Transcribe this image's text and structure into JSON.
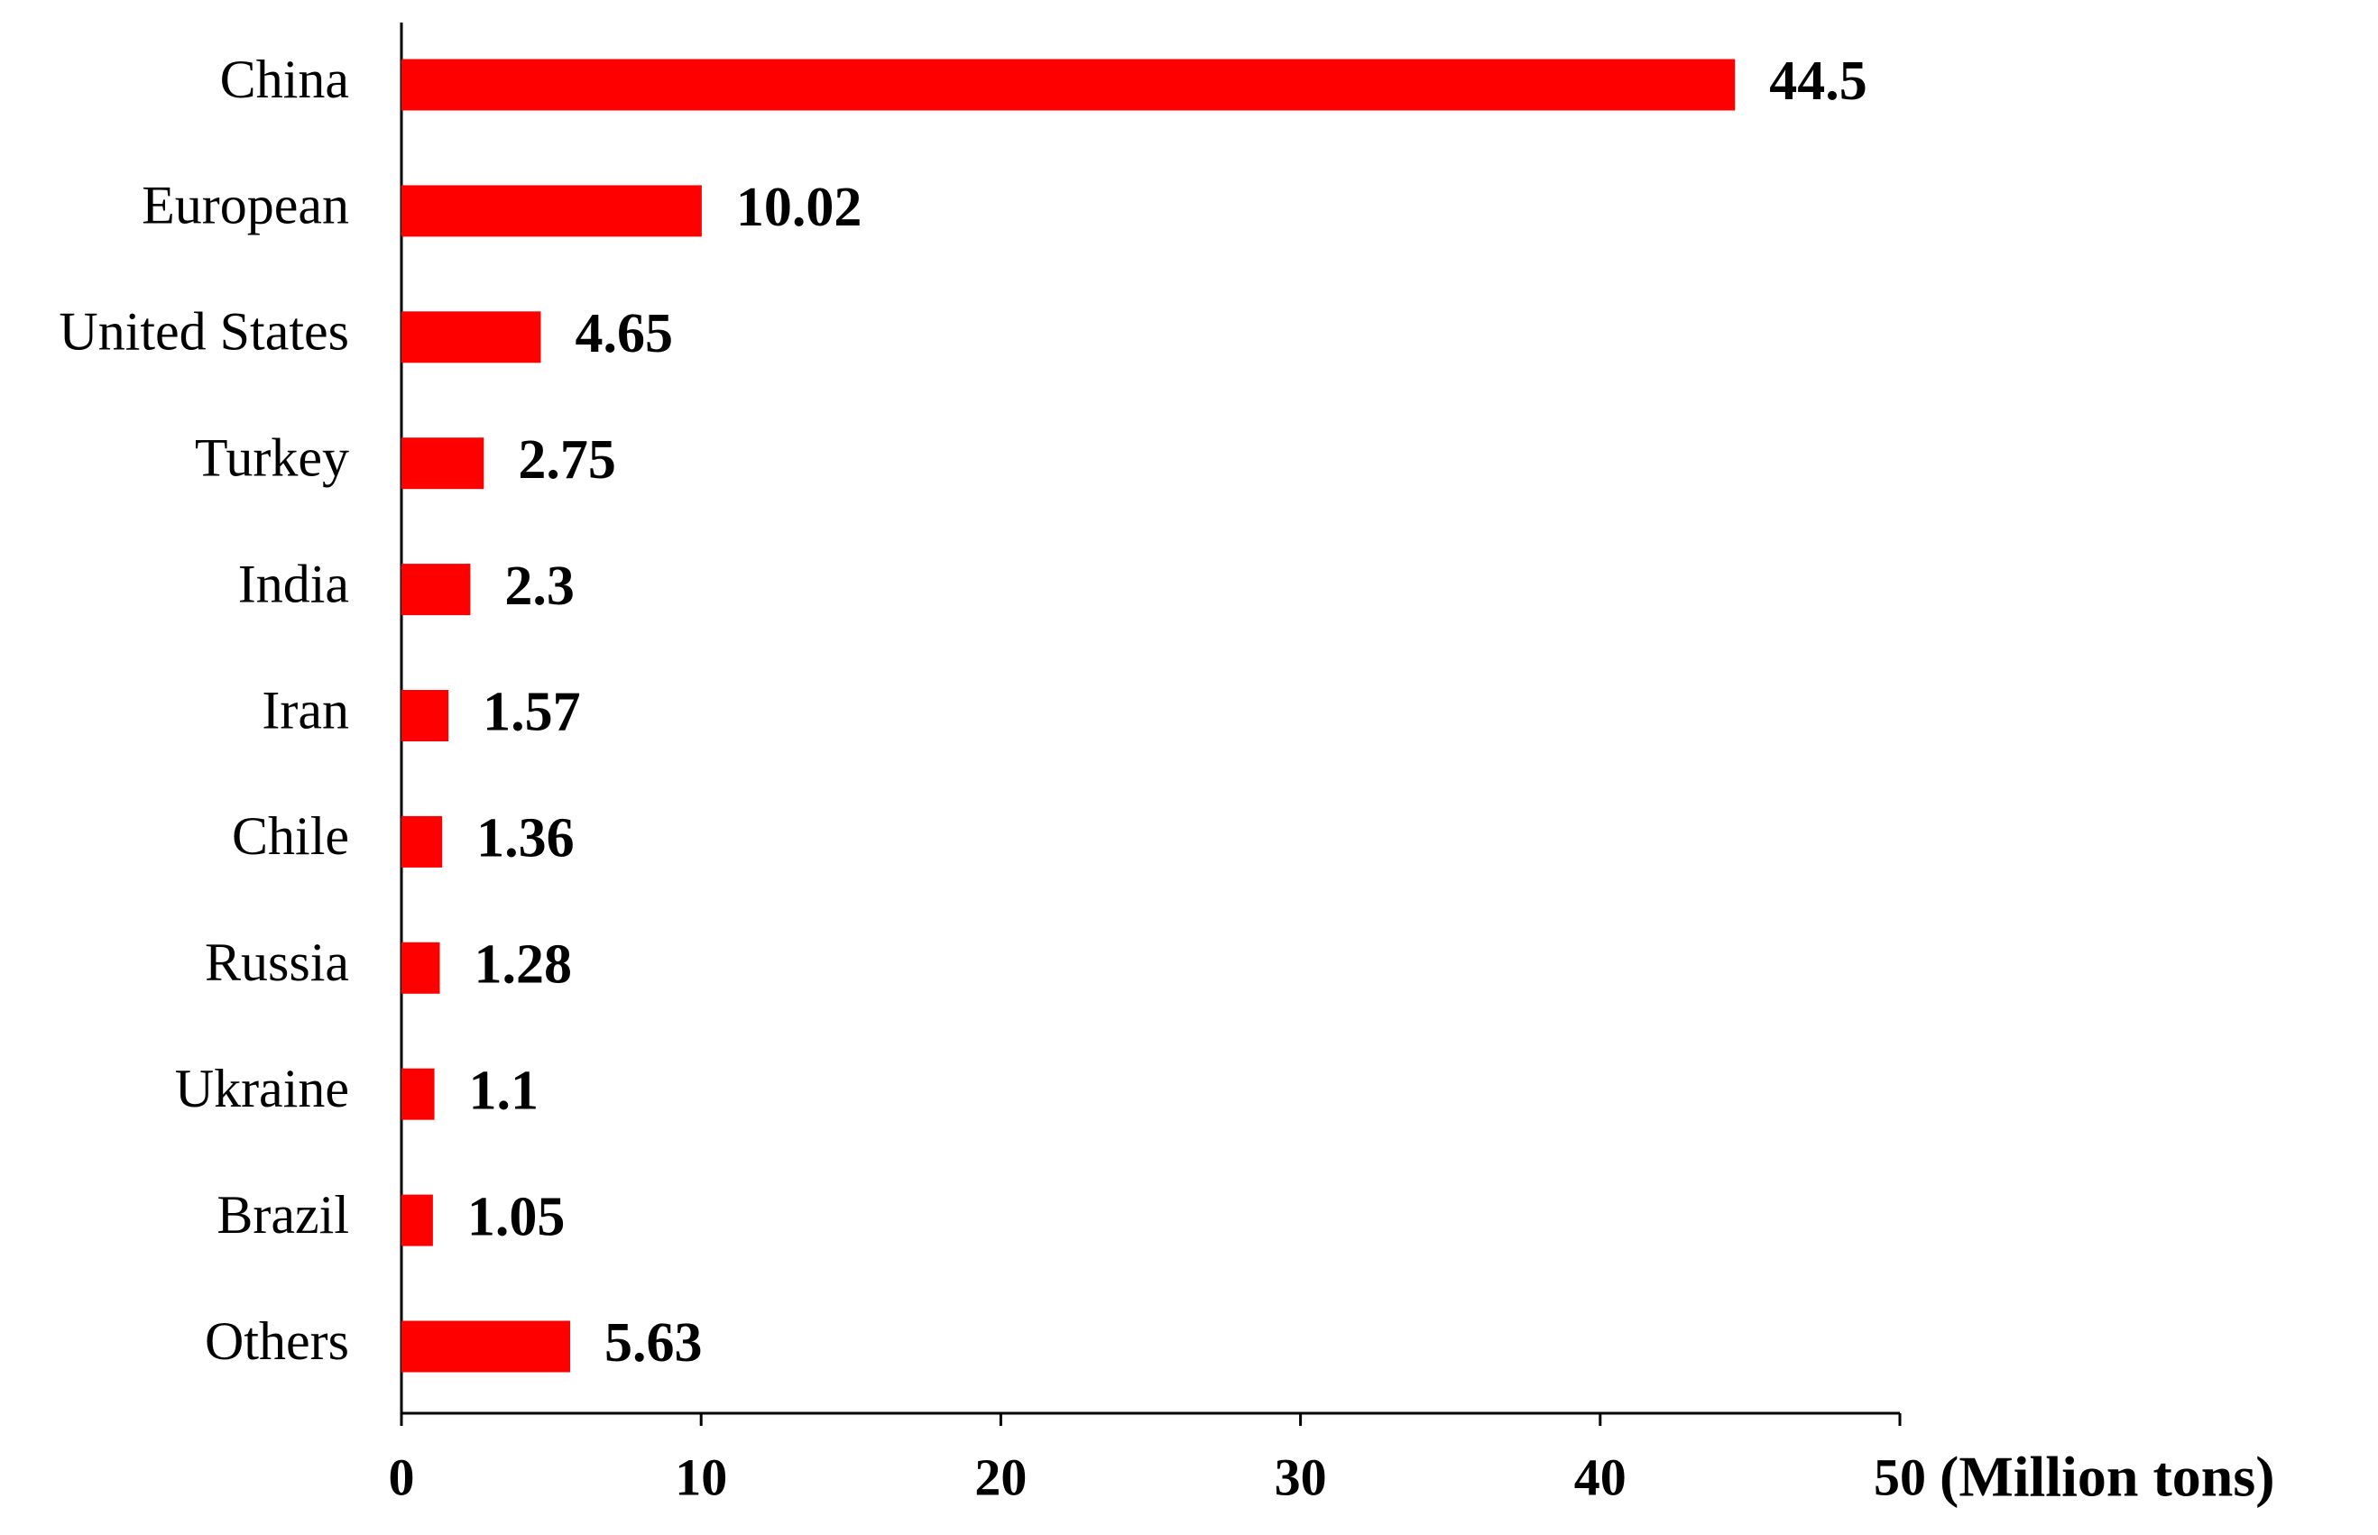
{
  "chart_data": {
    "type": "bar",
    "orientation": "horizontal",
    "categories": [
      "China",
      "European",
      "United States",
      "Turkey",
      "India",
      "Iran",
      "Chile",
      "Russia",
      "Ukraine",
      "Brazil",
      "Others"
    ],
    "values": [
      44.5,
      10.02,
      4.65,
      2.75,
      2.3,
      1.57,
      1.36,
      1.28,
      1.1,
      1.05,
      5.63
    ],
    "color": "#ff0000",
    "xlim": [
      0,
      50
    ],
    "xticks": [
      0,
      10,
      20,
      30,
      40,
      50
    ],
    "x_label": "(Million tons)",
    "grid": false
  }
}
